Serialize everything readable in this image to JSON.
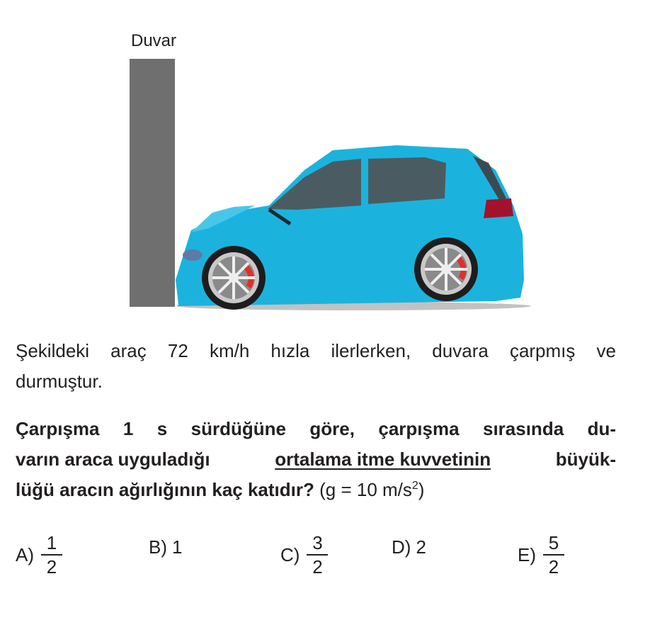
{
  "figure": {
    "wall_label": "Duvar",
    "car_color": "#1bb3dd",
    "wall_color": "#6f6f6f"
  },
  "question": {
    "intro_lines": [
      "Şekildeki araç 72 km/h hızla ilerlerken, duvara çarpmış ve",
      "durmuştur."
    ],
    "bold_line1": "Çarpışma 1 s sürdüğüne göre, çarpışma sırasında du-",
    "bold_line2_pre": "varın araca uyguladığı ",
    "bold_line2_underlined": "ortalama itme kuvvetinin",
    "bold_line2_post": " büyük-",
    "bold_line3": "lüğü aracın ağırlığının kaç katıdır?",
    "given_pre": " (g = 10 m/s",
    "given_sup": "2",
    "given_post": ")"
  },
  "options": [
    {
      "label": "A)",
      "numerator": "1",
      "denominator": "2"
    },
    {
      "label": "B)",
      "value": "1"
    },
    {
      "label": "C)",
      "numerator": "3",
      "denominator": "2"
    },
    {
      "label": "D)",
      "value": "2"
    },
    {
      "label": "E)",
      "numerator": "5",
      "denominator": "2"
    }
  ]
}
